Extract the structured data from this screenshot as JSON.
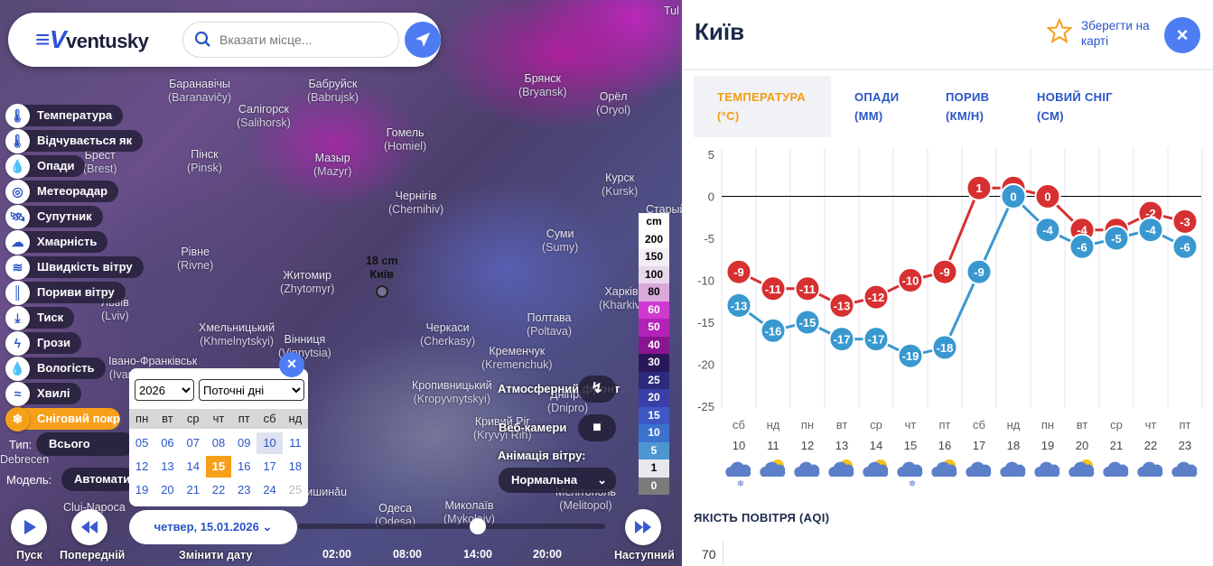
{
  "app": {
    "logo": "ventusky",
    "search_placeholder": "Вказати місце..."
  },
  "map": {
    "cities": [
      {
        "name": "Баранавічы",
        "latin": "(Baranavičy)"
      },
      {
        "name": "Бабруйск",
        "latin": "(Babrujsk)"
      },
      {
        "name": "Брянск",
        "latin": "(Bryansk)"
      },
      {
        "name": "Салігорск",
        "latin": "(Salihorsk)"
      },
      {
        "name": "Орёл",
        "latin": "(Oryol)"
      },
      {
        "name": "Гомель",
        "latin": "(Homiel)"
      },
      {
        "name": "Пінск",
        "latin": "(Pinsk)"
      },
      {
        "name": "Мазыр",
        "latin": "(Mazyr)"
      },
      {
        "name": "Курск",
        "latin": "(Kursk)"
      },
      {
        "name": "Чернігів",
        "latin": "(Chernihiv)"
      },
      {
        "name": "Суми",
        "latin": "(Sumy)"
      },
      {
        "name": "Рівне",
        "latin": "(Rivne)"
      },
      {
        "name": "Житомир",
        "latin": "(Zhytomyr)"
      },
      {
        "name": "Харків",
        "latin": "(Kharkiv)"
      },
      {
        "name": "Львів",
        "latin": "(Lviv)"
      },
      {
        "name": "Хмельницький",
        "latin": "(Khmelnytskyi)"
      },
      {
        "name": "Вінниця",
        "latin": "(Vinnytsia)"
      },
      {
        "name": "Черкаси",
        "latin": "(Cherkasy)"
      },
      {
        "name": "Полтава",
        "latin": "(Poltava)"
      },
      {
        "name": "Кременчук",
        "latin": "(Kremenchuk)"
      },
      {
        "name": "Кропивницький",
        "latin": "(Kropyvnytskyi)"
      },
      {
        "name": "Дніпро",
        "latin": "(Dnipro)"
      },
      {
        "name": "Кривий Ріг",
        "latin": "(Kryvyi Rih)"
      },
      {
        "name": "Миколаїв",
        "latin": "(Mykolaiv)"
      },
      {
        "name": "Мелітополь",
        "latin": "(Melitopol)"
      },
      {
        "name": "Одеса",
        "latin": "(Odesa)"
      },
      {
        "name": "Брест",
        "latin": "(Brest)"
      },
      {
        "name": "Старый",
        "latin": ""
      },
      {
        "name": "Івано-Франківськ",
        "latin": "(Ivano-Frankivsk)"
      },
      {
        "name": "Кишинău",
        "latin": ""
      },
      {
        "name": "Cluj-Napoca",
        "latin": ""
      },
      {
        "name": "Debrecen",
        "latin": ""
      },
      {
        "name": "Tul",
        "latin": ""
      }
    ],
    "marker": {
      "snow": "18 cm",
      "city": "Київ"
    }
  },
  "menu": [
    {
      "label": "Температура",
      "icon": "thermometer-icon",
      "glyph": "🌡"
    },
    {
      "label": "Відчувається як",
      "icon": "feels-like-icon",
      "glyph": "🌡"
    },
    {
      "label": "Опади",
      "icon": "drop-icon",
      "glyph": "💧"
    },
    {
      "label": "Метеорадар",
      "icon": "radar-icon",
      "glyph": "◎"
    },
    {
      "label": "Супутник",
      "icon": "satellite-icon",
      "glyph": "🛰"
    },
    {
      "label": "Хмарність",
      "icon": "cloud-icon",
      "glyph": "☁"
    },
    {
      "label": "Швидкість вітру",
      "icon": "wind-icon",
      "glyph": "≋"
    },
    {
      "label": "Пориви вітру",
      "icon": "gust-icon",
      "glyph": "║"
    },
    {
      "label": "Тиск",
      "icon": "pressure-icon",
      "glyph": "⤓"
    },
    {
      "label": "Грози",
      "icon": "lightning-icon",
      "glyph": "ϟ"
    },
    {
      "label": "Вологість",
      "icon": "humidity-icon",
      "glyph": "💧"
    },
    {
      "label": "Хвилі",
      "icon": "waves-icon",
      "glyph": "≈"
    },
    {
      "label": "Сніговий покрив",
      "icon": "snowflake-icon",
      "glyph": "❄"
    }
  ],
  "filters": {
    "type_label": "Тип:",
    "type_value": "Всього",
    "model_label": "Модель:",
    "model_value": "Автоматично"
  },
  "legend": {
    "unit": "cm",
    "items": [
      {
        "value": "200",
        "bg": "#ffffff",
        "fg": "#000"
      },
      {
        "value": "150",
        "bg": "#f3eef6",
        "fg": "#000"
      },
      {
        "value": "100",
        "bg": "#e7d8ec",
        "fg": "#000"
      },
      {
        "value": "80",
        "bg": "#d9a9d9",
        "fg": "#000"
      },
      {
        "value": "60",
        "bg": "#d039cf",
        "fg": "#fff"
      },
      {
        "value": "50",
        "bg": "#b222b6",
        "fg": "#fff"
      },
      {
        "value": "40",
        "bg": "#8a1590",
        "fg": "#fff"
      },
      {
        "value": "30",
        "bg": "#2a175a",
        "fg": "#fff"
      },
      {
        "value": "25",
        "bg": "#2b2a7c",
        "fg": "#fff"
      },
      {
        "value": "20",
        "bg": "#3a3fa8",
        "fg": "#fff"
      },
      {
        "value": "15",
        "bg": "#3e57c4",
        "fg": "#fff"
      },
      {
        "value": "10",
        "bg": "#3c72cf",
        "fg": "#fff"
      },
      {
        "value": "5",
        "bg": "#4e96d2",
        "fg": "#fff"
      },
      {
        "value": "1",
        "bg": "#e6e8ee",
        "fg": "#000"
      },
      {
        "value": "0",
        "bg": "#7b7b7b",
        "fg": "#fff"
      }
    ]
  },
  "calendar": {
    "year": "2026",
    "range": "Поточні дні",
    "weekdays": [
      "пн",
      "вт",
      "ср",
      "чт",
      "пт",
      "сб",
      "нд"
    ],
    "weeks": [
      [
        "05",
        "06",
        "07",
        "08",
        "09",
        "10",
        "11"
      ],
      [
        "12",
        "13",
        "14",
        "15",
        "16",
        "17",
        "18"
      ],
      [
        "19",
        "20",
        "21",
        "22",
        "23",
        "24",
        "25"
      ]
    ],
    "selected": "15",
    "highlighted": "10",
    "disabled": "25"
  },
  "controls": {
    "play": "Пуск",
    "previous": "Попередній",
    "change_date": "Змінити дату",
    "next": "Наступний",
    "date": "четвер, 15.01.2026",
    "times": [
      "02:00",
      "08:00",
      "14:00",
      "20:00"
    ],
    "front": "Атмосферний фронт",
    "webcams": "Веб-камери",
    "wind_anim_label": "Анімація вітру:",
    "wind_anim_value": "Нормальна"
  },
  "panel": {
    "city": "Київ",
    "save": "Зберегти на карті",
    "tabs": [
      {
        "line1": "ТЕМПЕРАТУРА",
        "line2": "(°C)",
        "active": true
      },
      {
        "line1": "ОПАДИ",
        "line2": "(ММ)",
        "active": false
      },
      {
        "line1": "ПОРИВ",
        "line2": "(КМ/Н)",
        "active": false
      },
      {
        "line1": "НОВИЙ СНІГ",
        "line2": "(СМ)",
        "active": false
      }
    ],
    "aqi_title": "ЯКІСТЬ ПОВІТРЯ (AQI)",
    "aqi_tick": "70"
  },
  "chart_data": {
    "type": "line",
    "categories": [
      "10",
      "11",
      "12",
      "13",
      "14",
      "15",
      "16",
      "17",
      "18",
      "19",
      "20",
      "21",
      "22",
      "23"
    ],
    "weekdays": [
      "сб",
      "нд",
      "пн",
      "вт",
      "ср",
      "чт",
      "пт",
      "сб",
      "нд",
      "пн",
      "вт",
      "ср",
      "чт",
      "пт"
    ],
    "icons": [
      "snow-cloud-icon",
      "sun-cloud-icon",
      "cloud-icon",
      "sun-cloud-icon",
      "sun-cloud-icon",
      "snow-cloud-icon",
      "sun-cloud-icon",
      "cloud-icon",
      "cloud-icon",
      "cloud-icon",
      "sun-cloud-icon",
      "cloud-icon",
      "cloud-icon",
      "cloud-icon"
    ],
    "series": [
      {
        "values": [
          -9,
          -11,
          -11,
          -13,
          -12,
          -10,
          -9,
          1,
          1,
          0,
          -4,
          -4,
          -2,
          -3
        ],
        "color": "#d63031"
      },
      {
        "values": [
          -13,
          -16,
          -15,
          -17,
          -17,
          -19,
          -18,
          -9,
          0,
          -4,
          -6,
          -5,
          -4,
          -6
        ],
        "color": "#3a98d0"
      }
    ],
    "yticks": [
      5,
      0,
      -5,
      -10,
      -15,
      -20,
      -25
    ],
    "ylim": [
      -25,
      5
    ],
    "grid": true
  }
}
